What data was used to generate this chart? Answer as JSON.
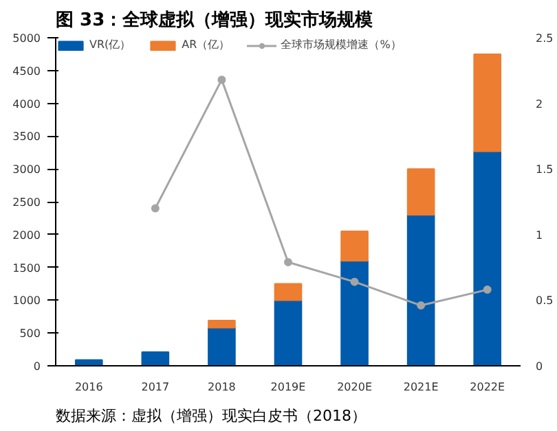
{
  "chart_data": {
    "type": "bar",
    "title": "图 33：全球虚拟（增强）现实市场规模",
    "stacked": true,
    "categories": [
      "2016",
      "2017",
      "2018",
      "2019E",
      "2020E",
      "2021E",
      "2022E"
    ],
    "series": [
      {
        "name": "VR(亿）",
        "color": "#005bac",
        "values": [
          90,
          210,
          580,
          1000,
          1600,
          2300,
          3270
        ]
      },
      {
        "name": "AR（亿）",
        "color": "#ed7d31",
        "values": [
          null,
          null,
          110,
          250,
          450,
          700,
          1480
        ]
      },
      {
        "name": "全球市场规模增速（%）",
        "type": "line",
        "axis": "y2",
        "color": "#a5a5a5",
        "marker": "circle",
        "values": [
          null,
          1.2,
          2.18,
          0.79,
          0.64,
          0.46,
          0.58
        ]
      }
    ],
    "ylim": [
      0,
      5000
    ],
    "yticks": [
      0,
      500,
      1000,
      1500,
      2000,
      2500,
      3000,
      3500,
      4000,
      4500,
      5000
    ],
    "y2lim": [
      0,
      2.5
    ],
    "y2ticks": [
      0,
      0.5,
      1,
      1.5,
      2,
      2.5
    ],
    "grid": false,
    "legend": "top",
    "annotations": [
      "数据来源：虚拟（增强）现实白皮书（2018）"
    ]
  }
}
